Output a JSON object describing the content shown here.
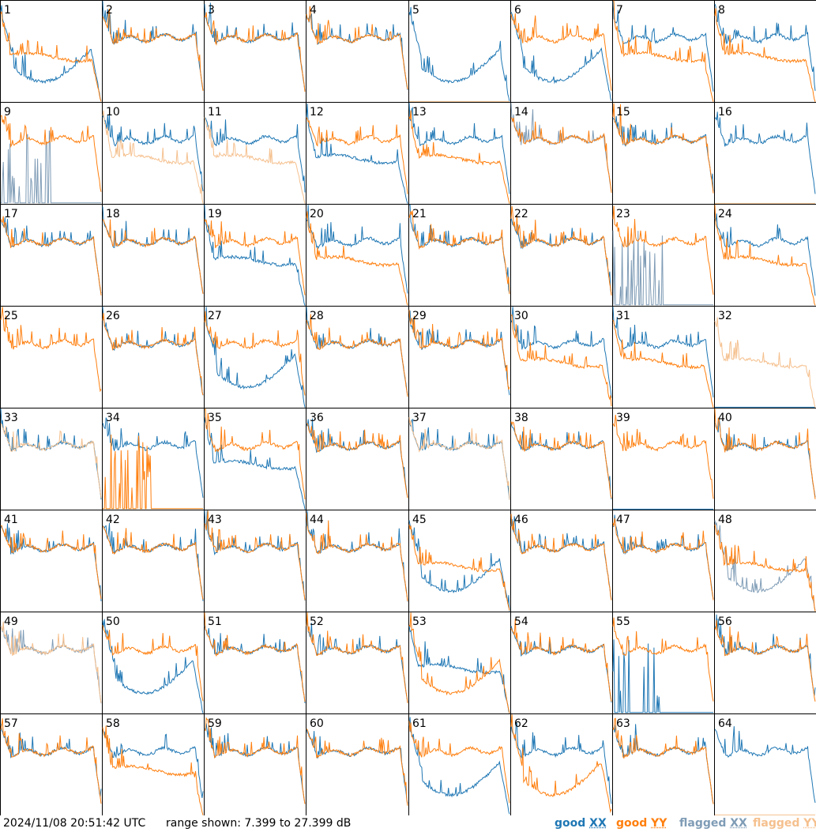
{
  "footer": {
    "timestamp": "2024/11/08 20:51:42 UTC",
    "range_text": "range shown: 7.399 to 27.399 dB"
  },
  "legend": {
    "good_xx": {
      "prefix": "good",
      "pol": "XX",
      "color": "#1f77b4"
    },
    "good_yy": {
      "prefix": "good",
      "pol": "YY",
      "color": "#ff7f0e"
    },
    "flagged_xx": {
      "prefix": "flagged",
      "pol": "XX",
      "color": "#7f9cb6"
    },
    "flagged_yy": {
      "prefix": "flagged",
      "pol": "YY",
      "color": "#f5c08e"
    }
  },
  "chart_data": {
    "type": "line",
    "layout": "small-multiples",
    "rows": 8,
    "cols": 8,
    "ylim": [
      7.399,
      27.399
    ],
    "yunit": "dB",
    "panel_labels": [
      "1",
      "2",
      "3",
      "4",
      "5",
      "6",
      "7",
      "8",
      "9",
      "10",
      "11",
      "12",
      "13",
      "14",
      "15",
      "16",
      "17",
      "18",
      "19",
      "20",
      "21",
      "22",
      "23",
      "24",
      "25",
      "26",
      "27",
      "28",
      "29",
      "30",
      "31",
      "32",
      "33",
      "34",
      "35",
      "36",
      "37",
      "38",
      "39",
      "40",
      "41",
      "42",
      "43",
      "44",
      "45",
      "46",
      "47",
      "48",
      "49",
      "50",
      "51",
      "52",
      "53",
      "54",
      "55",
      "56",
      "57",
      "58",
      "59",
      "60",
      "61",
      "62",
      "63",
      "64"
    ],
    "series": [
      {
        "name": "good XX",
        "color": "#1f77b4"
      },
      {
        "name": "good YY",
        "color": "#ff7f0e"
      },
      {
        "name": "flagged XX",
        "color": "#7f9cb6"
      },
      {
        "name": "flagged YY",
        "color": "#f5c08e"
      }
    ],
    "panels": [
      {
        "xx": "low",
        "yy": "mid",
        "xs": "g",
        "ys": "g"
      },
      {
        "xx": "std",
        "yy": "std",
        "xs": "g",
        "ys": "g"
      },
      {
        "xx": "std",
        "yy": "std",
        "xs": "g",
        "ys": "g"
      },
      {
        "xx": "std",
        "yy": "std",
        "xs": "g",
        "ys": "g"
      },
      {
        "xx": "low",
        "yy": "flat0",
        "xs": "g",
        "ys": "f"
      },
      {
        "xx": "low",
        "yy": "std",
        "xs": "g",
        "ys": "g"
      },
      {
        "xx": "std",
        "yy": "mid",
        "xs": "g",
        "ys": "g"
      },
      {
        "xx": "std",
        "yy": "mid",
        "xs": "g",
        "ys": "g"
      },
      {
        "xx": "spike",
        "yy": "std",
        "xs": "f",
        "ys": "g"
      },
      {
        "xx": "std",
        "yy": "mid",
        "xs": "g",
        "ys": "f"
      },
      {
        "xx": "std",
        "yy": "mid",
        "xs": "g",
        "ys": "f"
      },
      {
        "xx": "mid",
        "yy": "std",
        "xs": "g",
        "ys": "g"
      },
      {
        "xx": "std",
        "yy": "mid",
        "xs": "g",
        "ys": "g"
      },
      {
        "xx": "std",
        "yy": "std",
        "xs": "f",
        "ys": "g"
      },
      {
        "xx": "std",
        "yy": "std",
        "xs": "g",
        "ys": "g"
      },
      {
        "xx": "std",
        "yy": "flat0",
        "xs": "g",
        "ys": "f"
      },
      {
        "xx": "std",
        "yy": "std",
        "xs": "g",
        "ys": "g"
      },
      {
        "xx": "std",
        "yy": "std",
        "xs": "g",
        "ys": "g"
      },
      {
        "xx": "mid",
        "yy": "std",
        "xs": "g",
        "ys": "g"
      },
      {
        "xx": "std",
        "yy": "mid",
        "xs": "g",
        "ys": "g"
      },
      {
        "xx": "std",
        "yy": "std",
        "xs": "g",
        "ys": "g"
      },
      {
        "xx": "std",
        "yy": "std",
        "xs": "g",
        "ys": "g"
      },
      {
        "xx": "spike",
        "yy": "std",
        "xs": "f",
        "ys": "g"
      },
      {
        "xx": "std",
        "yy": "mid",
        "xs": "g",
        "ys": "g"
      },
      {
        "xx": "none",
        "yy": "std",
        "xs": "g",
        "ys": "g"
      },
      {
        "xx": "std",
        "yy": "std",
        "xs": "g",
        "ys": "g"
      },
      {
        "xx": "low",
        "yy": "std",
        "xs": "g",
        "ys": "g"
      },
      {
        "xx": "std",
        "yy": "std",
        "xs": "g",
        "ys": "g"
      },
      {
        "xx": "std",
        "yy": "std",
        "xs": "g",
        "ys": "g"
      },
      {
        "xx": "std",
        "yy": "mid",
        "xs": "g",
        "ys": "g"
      },
      {
        "xx": "std",
        "yy": "mid",
        "xs": "g",
        "ys": "g"
      },
      {
        "xx": "flat0",
        "yy": "mid",
        "xs": "g",
        "ys": "f"
      },
      {
        "xx": "std",
        "yy": "std",
        "xs": "g",
        "ys": "f"
      },
      {
        "xx": "std",
        "yy": "spike",
        "xs": "g",
        "ys": "g"
      },
      {
        "xx": "mid",
        "yy": "std",
        "xs": "g",
        "ys": "g"
      },
      {
        "xx": "std",
        "yy": "std",
        "xs": "g",
        "ys": "g"
      },
      {
        "xx": "std",
        "yy": "std",
        "xs": "g",
        "ys": "f"
      },
      {
        "xx": "std",
        "yy": "std",
        "xs": "g",
        "ys": "g"
      },
      {
        "xx": "flat0",
        "yy": "std",
        "xs": "g",
        "ys": "g"
      },
      {
        "xx": "std",
        "yy": "std",
        "xs": "g",
        "ys": "g"
      },
      {
        "xx": "std",
        "yy": "std",
        "xs": "g",
        "ys": "g"
      },
      {
        "xx": "std",
        "yy": "std",
        "xs": "g",
        "ys": "g"
      },
      {
        "xx": "std",
        "yy": "std",
        "xs": "g",
        "ys": "g"
      },
      {
        "xx": "std",
        "yy": "std",
        "xs": "g",
        "ys": "g"
      },
      {
        "xx": "low",
        "yy": "mid",
        "xs": "g",
        "ys": "g"
      },
      {
        "xx": "std",
        "yy": "std",
        "xs": "g",
        "ys": "g"
      },
      {
        "xx": "std",
        "yy": "std",
        "xs": "g",
        "ys": "g"
      },
      {
        "xx": "low",
        "yy": "mid",
        "xs": "f",
        "ys": "g"
      },
      {
        "xx": "std",
        "yy": "std",
        "xs": "f",
        "ys": "f"
      },
      {
        "xx": "low",
        "yy": "std",
        "xs": "g",
        "ys": "g"
      },
      {
        "xx": "std",
        "yy": "std",
        "xs": "g",
        "ys": "g"
      },
      {
        "xx": "std",
        "yy": "std",
        "xs": "g",
        "ys": "g"
      },
      {
        "xx": "mid",
        "yy": "low",
        "xs": "g",
        "ys": "g"
      },
      {
        "xx": "std",
        "yy": "std",
        "xs": "g",
        "ys": "g"
      },
      {
        "xx": "spike",
        "yy": "std",
        "xs": "g",
        "ys": "g"
      },
      {
        "xx": "std",
        "yy": "std",
        "xs": "g",
        "ys": "g"
      },
      {
        "xx": "std",
        "yy": "std",
        "xs": "g",
        "ys": "g"
      },
      {
        "xx": "std",
        "yy": "mid",
        "xs": "g",
        "ys": "g"
      },
      {
        "xx": "std",
        "yy": "std",
        "xs": "g",
        "ys": "g"
      },
      {
        "xx": "std",
        "yy": "std",
        "xs": "g",
        "ys": "g"
      },
      {
        "xx": "low",
        "yy": "std",
        "xs": "g",
        "ys": "g"
      },
      {
        "xx": "std",
        "yy": "low",
        "xs": "g",
        "ys": "g"
      },
      {
        "xx": "std",
        "yy": "std",
        "xs": "g",
        "ys": "g"
      },
      {
        "xx": "std",
        "yy": "flat0",
        "xs": "g",
        "ys": "f"
      }
    ]
  }
}
